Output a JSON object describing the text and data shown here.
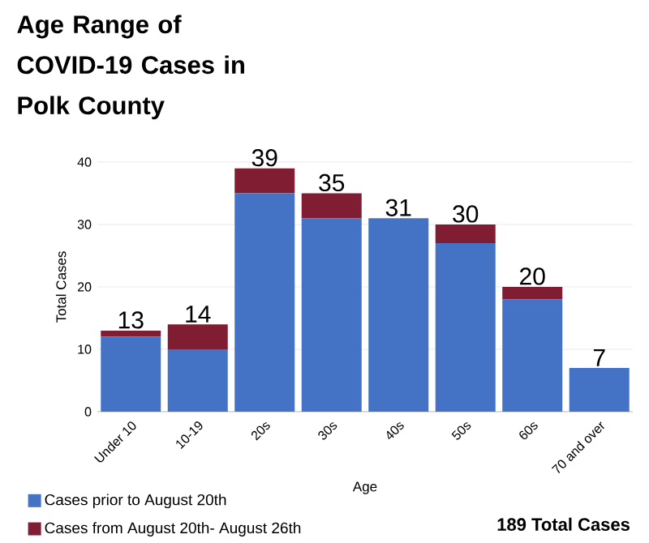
{
  "chart_data": {
    "type": "bar",
    "stacked": true,
    "title": "Age Range of COVID-19 Cases in Polk County",
    "xlabel": "Age",
    "ylabel": "Total Cases",
    "categories": [
      "Under 10",
      "10-19",
      "20s",
      "30s",
      "40s",
      "50s",
      "60s",
      "70 and over"
    ],
    "series": [
      {
        "name": "Cases prior to August 20th",
        "color": "#4472c4",
        "values": [
          12,
          10,
          35,
          31,
          31,
          27,
          18,
          7
        ]
      },
      {
        "name": "Cases from August 20th- August 26th",
        "color": "#801d33",
        "values": [
          1,
          4,
          4,
          4,
          0,
          3,
          2,
          0
        ]
      }
    ],
    "totals": [
      "13",
      "14",
      "39",
      "35",
      "31",
      "30",
      "20",
      "7"
    ],
    "ylim": [
      0,
      40
    ],
    "yticks": [
      0,
      10,
      20,
      30,
      40
    ],
    "grid": "y",
    "legend": "bottom left",
    "annotations": [
      "**189 Total Cases**"
    ]
  }
}
